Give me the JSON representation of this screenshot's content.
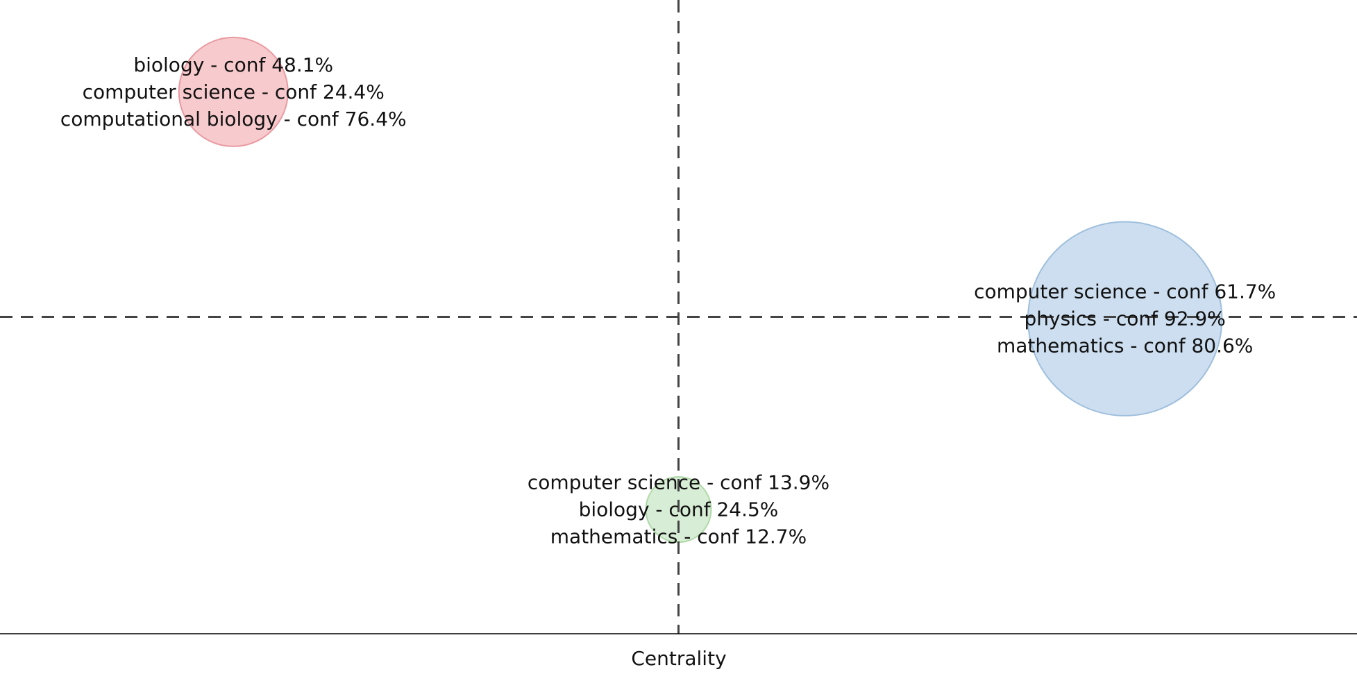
{
  "chart_data": {
    "type": "scatter",
    "xlabel": "Centrality",
    "ylabel": "",
    "xlim": [
      0,
      1
    ],
    "ylim": [
      0,
      1
    ],
    "grid": false,
    "reference_lines": {
      "x": 0.5,
      "y": 0.5
    },
    "points": [
      {
        "x": 0.172,
        "y": 0.855,
        "size": 0.172,
        "color": "#f4b3b8",
        "stroke": "#e99aa1",
        "labels": [
          "biology - conf 48.1%",
          "computer science - conf 24.4%",
          "computational biology - conf 76.4%"
        ]
      },
      {
        "x": 0.829,
        "y": 0.497,
        "size": 0.306,
        "color": "#b7d0e8",
        "stroke": "#9fbfdd",
        "labels": [
          "computer science - conf 61.7%",
          "physics - conf 92.9%",
          "mathematics - conf 80.6%"
        ]
      },
      {
        "x": 0.5,
        "y": 0.196,
        "size": 0.103,
        "color": "#c8e6c3",
        "stroke": "#afd9a8",
        "labels": [
          "computer science - conf 13.9%",
          "biology - conf 24.5%",
          "mathematics - conf 12.7%"
        ]
      }
    ]
  }
}
